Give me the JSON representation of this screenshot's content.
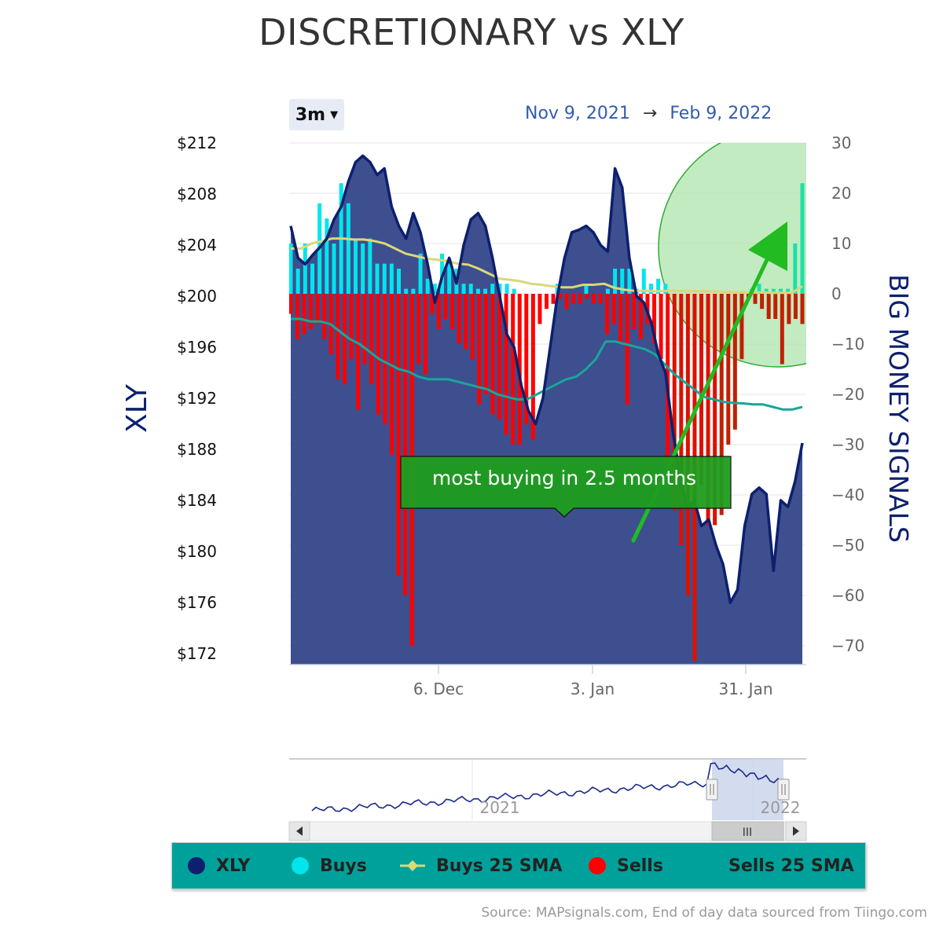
{
  "title": "DISCRETIONARY vs XLY",
  "range_selector": {
    "label": "3m"
  },
  "date_range": {
    "from": "Nov 9, 2021",
    "to": "Feb 9, 2022",
    "arrow": "→"
  },
  "colors": {
    "xly": "#0d1f6e",
    "xly_fill": "#3d4f8e",
    "buys": "#00e5ee",
    "buys_sma": "#d9d87a",
    "sells": "#ff0000",
    "sells_sma": "#1aa59b",
    "green_buys": "#1de0a6",
    "dark_sells": "#c02000",
    "annotation": "#1a9a1a",
    "legend_bg": "#00a19a"
  },
  "chart_data": {
    "type": "area",
    "left_axis": {
      "title": "XLY",
      "ticks": [
        "$212",
        "$208",
        "$204",
        "$200",
        "$196",
        "$192",
        "$188",
        "$184",
        "$180",
        "$176",
        "$172"
      ],
      "range": [
        171.5,
        212
      ]
    },
    "right_axis": {
      "title": "BIG MONEY SIGNALS",
      "ticks": [
        "30",
        "20",
        "10",
        "0",
        "−10",
        "−20",
        "−30",
        "−40",
        "−50",
        "−60",
        "−70"
      ],
      "range": [
        -73.5,
        30
      ]
    },
    "x_ticks": [
      "6. Dec",
      "3. Jan",
      "31. Jan"
    ],
    "grid": true,
    "series": [
      {
        "name": "XLY",
        "values": [
          205.5,
          203,
          202.5,
          203.2,
          203.8,
          204.5,
          206,
          207,
          209,
          210.5,
          211,
          210.5,
          209.5,
          210,
          207,
          205.5,
          204.5,
          206.5,
          205,
          202.5,
          199.5,
          201.5,
          203,
          201,
          204,
          206,
          206.5,
          205.5,
          203,
          200,
          197,
          196,
          193,
          191,
          190,
          192,
          196,
          200,
          203,
          205,
          205.2,
          205.5,
          205,
          204,
          203.5,
          210,
          208.5,
          203,
          200,
          199.5,
          198,
          195.5,
          194,
          189.5,
          186,
          183.5,
          184,
          182,
          182.5,
          180.5,
          179,
          176,
          177,
          182,
          184.5,
          185,
          184.5,
          178.5,
          184,
          183.5,
          185.5,
          188.5
        ]
      },
      {
        "name": "Buys",
        "values": [
          10,
          5,
          10,
          6,
          18,
          15,
          10,
          22,
          18,
          11,
          10,
          11,
          6,
          6,
          6,
          5,
          1,
          1,
          8,
          3,
          2,
          8,
          6,
          5,
          2,
          2,
          1,
          1,
          2,
          2,
          2,
          1,
          0,
          0,
          0,
          0,
          0,
          2,
          0,
          0,
          0,
          2,
          0,
          0,
          1,
          5,
          5,
          5,
          1,
          5,
          2,
          3,
          2,
          0,
          0,
          0,
          0,
          0,
          0,
          0,
          0,
          0,
          0,
          0,
          1,
          2,
          1,
          1,
          1,
          1,
          10,
          22
        ]
      },
      {
        "name": "Sells",
        "values": [
          -4,
          -9,
          -8,
          -7,
          -6,
          -9,
          -12,
          -17,
          -18,
          -13,
          -23,
          -14,
          -18,
          -24,
          -26,
          -32,
          -56,
          -60,
          -70,
          -14,
          -16,
          -4,
          -7,
          -5,
          -7,
          -10,
          -11,
          -13,
          -22,
          -20,
          -24,
          -25,
          -28,
          -30,
          -30,
          -26,
          -29,
          -6,
          -3,
          -2,
          -1,
          -3,
          -2,
          -2,
          -1,
          -2,
          -2,
          -8,
          -6,
          -10,
          -22,
          -7,
          -9,
          -6,
          -10,
          -13,
          -35,
          -43,
          -50,
          -60,
          -73,
          -38,
          -46,
          -46,
          -44,
          -30,
          -27,
          -13,
          -1,
          -2,
          -3,
          -5,
          -5,
          -14,
          -6,
          -5,
          -6
        ]
      },
      {
        "name": "Buys 25 SMA",
        "values": [
          9,
          9,
          10,
          10.5,
          11,
          11,
          10.8,
          10.8,
          10.5,
          10,
          9,
          8,
          7.5,
          7,
          6.8,
          6.5,
          6,
          5.8,
          5,
          4,
          3,
          2.8,
          2.5,
          2,
          1.8,
          1.5,
          1.3,
          1.3,
          1.8,
          1.8,
          2,
          1.2,
          0.8,
          0.6,
          0.6,
          0.5,
          0.6,
          0.6,
          0.5,
          0.5,
          0.5,
          0.4,
          0.4,
          0.3,
          0.3,
          0.3,
          0.2,
          0.2,
          0.2,
          1.5
        ]
      },
      {
        "name": "Sells 25 SMA",
        "values": [
          -5,
          -5,
          -5.5,
          -5.5,
          -6,
          -7.5,
          -9,
          -10,
          -11.5,
          -13,
          -14,
          -15,
          -15.5,
          -16.5,
          -17,
          -17,
          -17,
          -17.5,
          -18,
          -18.5,
          -19,
          -20,
          -20.5,
          -21,
          -21,
          -20,
          -19,
          -18,
          -17,
          -16.5,
          -15,
          -13,
          -9.5,
          -9.5,
          -10,
          -10.5,
          -11,
          -12,
          -14,
          -16,
          -17.5,
          -19,
          -20.5,
          -21,
          -21.5,
          -21.7,
          -21.8,
          -22,
          -22,
          -22.5,
          -23,
          -23,
          -22.5
        ]
      }
    ],
    "annotation": {
      "label": "most buying in 2.5 months"
    }
  },
  "navigator": {
    "labels": [
      "2021",
      "2022"
    ],
    "handle_glyph": "II",
    "scrollbar_glyph": "III"
  },
  "legend": {
    "items": [
      {
        "label": "XLY"
      },
      {
        "label": "Buys"
      },
      {
        "label": "Buys 25 SMA"
      },
      {
        "label": "Sells"
      },
      {
        "label": "Sells 25 SMA"
      }
    ]
  },
  "source": "Source: MAPsignals.com, End of day data sourced from Tiingo.com"
}
